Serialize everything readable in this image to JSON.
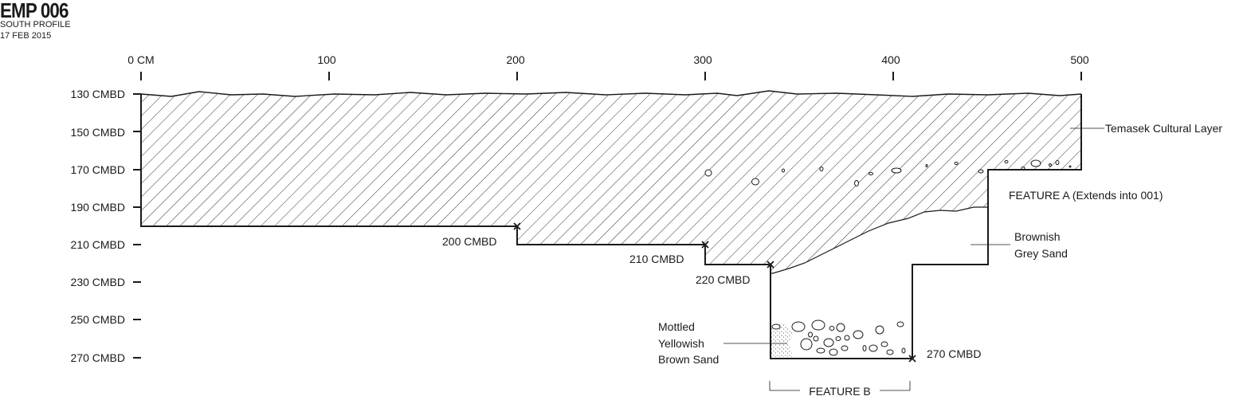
{
  "header": {
    "title": "EMP 006",
    "profile": "SOUTH PROFILE",
    "date": "17 FEB 2015"
  },
  "horizontal_axis": {
    "ticks": [
      {
        "value": 0,
        "label": "0 CM"
      },
      {
        "value": 100,
        "label": "100"
      },
      {
        "value": 200,
        "label": "200"
      },
      {
        "value": 300,
        "label": "300"
      },
      {
        "value": 400,
        "label": "400"
      },
      {
        "value": 500,
        "label": "500"
      }
    ]
  },
  "depth_axis": {
    "ticks": [
      {
        "value": 130,
        "label": "130 CMBD"
      },
      {
        "value": 150,
        "label": "150 CMBD"
      },
      {
        "value": 170,
        "label": "170 CMBD"
      },
      {
        "value": 190,
        "label": "190 CMBD"
      },
      {
        "value": 210,
        "label": "210 CMBD"
      },
      {
        "value": 230,
        "label": "230 CMBD"
      },
      {
        "value": 250,
        "label": "250 CMBD"
      },
      {
        "value": 270,
        "label": "270 CMBD"
      }
    ]
  },
  "step_labels": {
    "step_200": "200 CMBD",
    "step_210": "210 CMBD",
    "step_220": "220 CMBD",
    "step_270": "270 CMBD"
  },
  "layer_labels": {
    "temasek": "Temasek Cultural Layer",
    "feature_a": "FEATURE A (Extends into 001)",
    "brownish_1": "Brownish",
    "brownish_2": "Grey Sand",
    "mottled_1": "Mottled",
    "mottled_2": "Yellowish",
    "mottled_3": "Brown Sand",
    "feature_b": "FEATURE B"
  },
  "colors": {
    "ink": "#1a1a1a",
    "background": "#ffffff"
  }
}
